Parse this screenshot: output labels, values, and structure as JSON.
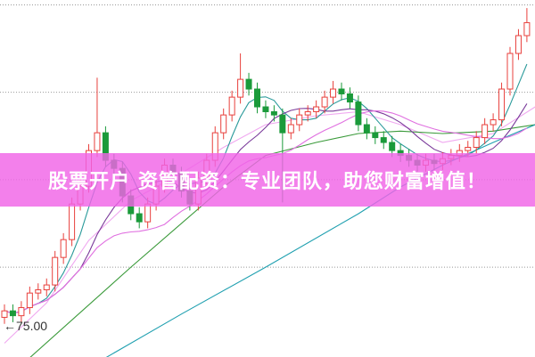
{
  "banner": {
    "text": "股票开户 资管配资：专业团队，助您财富增值！",
    "color": "#f064e6"
  },
  "chart_data": {
    "type": "candlestick",
    "ylim": [
      72.95,
      95
    ],
    "grid": {
      "horizontal": true,
      "style": "dotted",
      "levels": [
        94.7,
        89.3,
        83.9,
        78.5
      ]
    },
    "annotation": {
      "text": "←75.00",
      "value": 75.0,
      "index": 0
    },
    "up_color": "#e8403c",
    "down_color": "#1a9a3a",
    "candles": [
      [
        75.4,
        76.2,
        75.0,
        75.8
      ],
      [
        75.8,
        76.2,
        75.1,
        75.5
      ],
      [
        75.5,
        76.4,
        75.1,
        76.0
      ],
      [
        76.0,
        77.3,
        75.6,
        76.9
      ],
      [
        76.9,
        77.5,
        76.5,
        77.1
      ],
      [
        77.1,
        77.8,
        76.7,
        77.4
      ],
      [
        77.4,
        79.5,
        77.0,
        79.1
      ],
      [
        79.1,
        80.6,
        78.7,
        80.2
      ],
      [
        80.2,
        82.8,
        79.8,
        82.4
      ],
      [
        82.4,
        83.9,
        82.0,
        83.5
      ],
      [
        83.5,
        86.1,
        83.1,
        85.7
      ],
      [
        85.7,
        90.2,
        85.3,
        86.8
      ],
      [
        86.8,
        87.2,
        84.7,
        85.1
      ],
      [
        85.1,
        85.5,
        84.2,
        84.6
      ],
      [
        84.6,
        85.0,
        82.5,
        82.9
      ],
      [
        82.9,
        83.3,
        81.4,
        81.8
      ],
      [
        81.8,
        82.2,
        80.9,
        81.3
      ],
      [
        81.3,
        82.8,
        80.9,
        82.4
      ],
      [
        82.4,
        83.9,
        82.0,
        83.5
      ],
      [
        83.5,
        85.2,
        83.1,
        84.8
      ],
      [
        84.8,
        85.2,
        83.9,
        84.3
      ],
      [
        84.3,
        84.7,
        82.8,
        83.2
      ],
      [
        83.2,
        83.6,
        82.0,
        82.4
      ],
      [
        82.4,
        84.4,
        82.0,
        84.0
      ],
      [
        84.0,
        85.5,
        83.6,
        85.1
      ],
      [
        85.1,
        87.2,
        84.7,
        86.8
      ],
      [
        86.8,
        88.3,
        86.4,
        87.9
      ],
      [
        87.9,
        89.4,
        87.5,
        89.0
      ],
      [
        89.0,
        91.7,
        88.6,
        90.1
      ],
      [
        90.1,
        90.5,
        89.1,
        89.5
      ],
      [
        89.5,
        89.9,
        88.0,
        88.4
      ],
      [
        88.4,
        88.8,
        87.7,
        88.1
      ],
      [
        88.1,
        88.5,
        87.5,
        87.9
      ],
      [
        87.9,
        88.3,
        82.5,
        86.8
      ],
      [
        86.8,
        87.7,
        86.4,
        87.3
      ],
      [
        87.3,
        88.3,
        86.9,
        87.9
      ],
      [
        87.9,
        88.5,
        87.5,
        88.1
      ],
      [
        88.1,
        88.8,
        87.7,
        88.4
      ],
      [
        88.4,
        89.4,
        88.0,
        89.0
      ],
      [
        89.0,
        90.0,
        88.6,
        89.5
      ],
      [
        89.5,
        89.9,
        88.8,
        89.2
      ],
      [
        89.2,
        89.6,
        88.3,
        88.7
      ],
      [
        88.7,
        89.1,
        86.9,
        87.3
      ],
      [
        87.3,
        87.7,
        86.4,
        86.8
      ],
      [
        86.8,
        87.2,
        86.1,
        86.5
      ],
      [
        86.5,
        86.9,
        85.8,
        86.2
      ],
      [
        86.2,
        86.6,
        85.3,
        85.7
      ],
      [
        85.7,
        86.1,
        85.0,
        85.4
      ],
      [
        85.4,
        85.8,
        84.7,
        85.1
      ],
      [
        85.1,
        85.5,
        84.4,
        84.8
      ],
      [
        84.8,
        85.5,
        84.4,
        85.1
      ],
      [
        85.1,
        85.5,
        84.5,
        84.9
      ],
      [
        84.9,
        85.6,
        84.5,
        85.2
      ],
      [
        85.2,
        85.8,
        84.8,
        85.4
      ],
      [
        85.4,
        86.1,
        85.0,
        85.7
      ],
      [
        85.7,
        86.3,
        85.3,
        85.9
      ],
      [
        85.9,
        86.9,
        85.5,
        86.5
      ],
      [
        86.5,
        87.7,
        86.1,
        87.3
      ],
      [
        87.3,
        88.0,
        86.9,
        87.6
      ],
      [
        87.6,
        89.9,
        87.2,
        89.5
      ],
      [
        89.5,
        92.1,
        89.1,
        91.7
      ],
      [
        91.7,
        93.2,
        91.3,
        92.8
      ],
      [
        92.8,
        94.5,
        92.4,
        93.6
      ]
    ],
    "moving_averages": [
      {
        "period": 5,
        "color": "#2a9a9a"
      },
      {
        "period": 10,
        "color": "#7a3a9a"
      },
      {
        "period": 20,
        "color": "#e070e0"
      }
    ],
    "long_lines": [
      {
        "color": "#f0a8f0",
        "points": [
          [
            0,
            73.8
          ],
          [
            5,
            76.3
          ],
          [
            10,
            80.15
          ],
          [
            15,
            82.6
          ],
          [
            21,
            84.3
          ],
          [
            26,
            85.9
          ],
          [
            31,
            87.3
          ],
          [
            37,
            87.85
          ],
          [
            42,
            88.1
          ],
          [
            47,
            87.3
          ],
          [
            52,
            86.2
          ],
          [
            58,
            86.75
          ],
          [
            63,
            88.4
          ]
        ]
      },
      {
        "color": "#3a9a3a",
        "points": [
          [
            3,
            72.9
          ],
          [
            15,
            78.5
          ],
          [
            26,
            83.45
          ],
          [
            31,
            85.4
          ],
          [
            37,
            86.2
          ],
          [
            42,
            86.75
          ],
          [
            47,
            86.9
          ],
          [
            52,
            86.75
          ],
          [
            58,
            86.9
          ],
          [
            63,
            87.3
          ]
        ]
      },
      {
        "color": "#20a0b0",
        "points": [
          [
            12,
            72.9
          ],
          [
            21,
            75.6
          ],
          [
            31,
            78.5
          ],
          [
            42,
            81.8
          ],
          [
            47,
            83.45
          ],
          [
            52,
            84.8
          ],
          [
            58,
            86.2
          ],
          [
            63,
            87.3
          ]
        ]
      }
    ]
  }
}
